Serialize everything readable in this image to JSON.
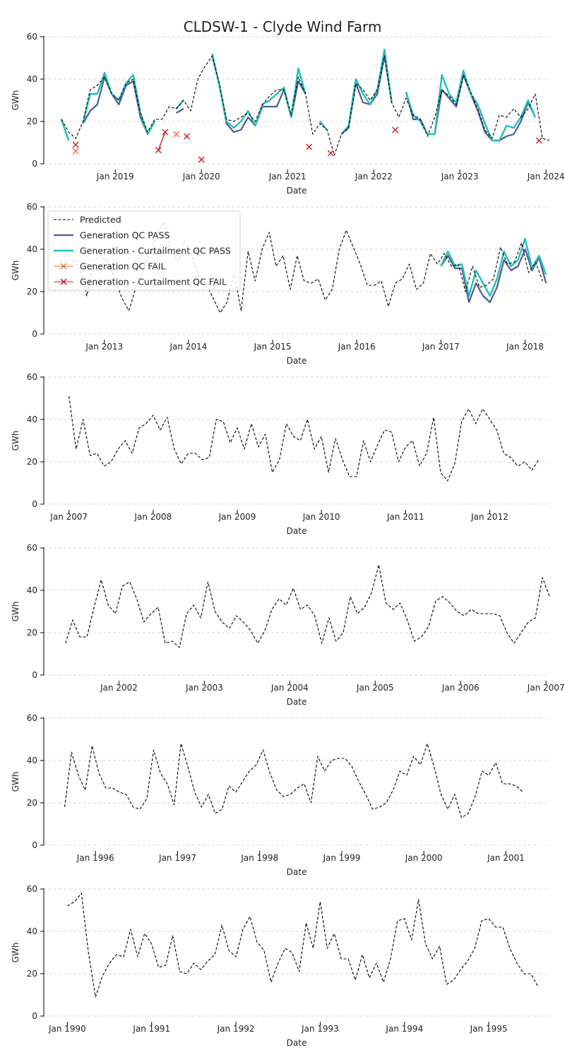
{
  "figure": {
    "title": "CLDSW-1 - Clyde Wind Farm"
  },
  "styles": {
    "predicted_color": "#000000",
    "gen_pass_color": "#4a5a96",
    "gen_curt_pass_color": "#22bfb8",
    "gen_fail_color": "#e8703a",
    "gen_curt_fail_color": "#cc1c1c",
    "grid_color": "#cccccc"
  },
  "legend": {
    "panel": 1,
    "placement": "top-left",
    "entries": [
      {
        "key": "predicted",
        "label": "Predicted"
      },
      {
        "key": "gen_pass",
        "label": "Generation QC PASS"
      },
      {
        "key": "gen_curt_pass",
        "label": "Generation - Curtailment QC PASS"
      },
      {
        "key": "gen_fail",
        "label": "Generation QC FAIL"
      },
      {
        "key": "gen_curt_fail",
        "label": "Generation - Curtailment QC FAIL"
      }
    ]
  },
  "chart_data": [
    {
      "type": "line",
      "xlabel": "Date",
      "ylabel": "GWh",
      "ylim": [
        0,
        60
      ],
      "yticks": [
        0,
        20,
        40,
        60
      ],
      "xlim": [
        2018.17,
        2024.04
      ],
      "xticks": [
        {
          "x": 2019,
          "label": "Jan 2019"
        },
        {
          "x": 2020,
          "label": "Jan 2020"
        },
        {
          "x": 2021,
          "label": "Jan 2021"
        },
        {
          "x": 2022,
          "label": "Jan 2022"
        },
        {
          "x": 2023,
          "label": "Jan 2023"
        },
        {
          "x": 2024,
          "label": "Jan 2024"
        }
      ],
      "grid": "y",
      "predicted": {
        "x0": 2018.375,
        "y": [
          21,
          15,
          12,
          20,
          35,
          37,
          41,
          33,
          30,
          38,
          40,
          24,
          15,
          21,
          21,
          27,
          26,
          30,
          25,
          40,
          46,
          51,
          38,
          21,
          20,
          22,
          24,
          20,
          28,
          32,
          35,
          35,
          23,
          41,
          33,
          14,
          19,
          16,
          4,
          14,
          17,
          38,
          35,
          30,
          35,
          51,
          29,
          22,
          31,
          23,
          21,
          13,
          22,
          35,
          32,
          28,
          42,
          34,
          26,
          16,
          12,
          23,
          22,
          26,
          22,
          26,
          33,
          12,
          11
        ]
      },
      "gen_pass": {
        "x0": 2018.375,
        "y": [
          21,
          11,
          null,
          19,
          25,
          28,
          41,
          33,
          28,
          37,
          39,
          22,
          14,
          20,
          null,
          null,
          24,
          26,
          null,
          null,
          null,
          51,
          37,
          19,
          15,
          16,
          22,
          18,
          27,
          27,
          27,
          35,
          22,
          39,
          33,
          null,
          20,
          16,
          null,
          14,
          17,
          38,
          29,
          28,
          33,
          51,
          29,
          null,
          34,
          21,
          21,
          14,
          14,
          35,
          31,
          27,
          42,
          33,
          25,
          15,
          11,
          11,
          13,
          14,
          20,
          29,
          22,
          null,
          null
        ]
      },
      "gen_curt_pass": {
        "x0": 2018.375,
        "y": [
          21,
          11,
          null,
          19,
          33,
          33,
          43,
          33,
          30,
          38,
          42,
          24,
          14,
          20,
          null,
          null,
          26,
          30,
          null,
          null,
          null,
          52,
          37,
          20,
          17,
          20,
          25,
          18,
          28,
          30,
          33,
          36,
          22,
          45,
          33,
          null,
          20,
          16,
          null,
          14,
          18,
          40,
          33,
          28,
          35,
          54,
          29,
          null,
          34,
          23,
          20,
          14,
          14,
          42,
          33,
          29,
          44,
          33,
          28,
          19,
          11,
          11,
          18,
          17,
          22,
          30,
          22,
          null,
          null
        ]
      },
      "gen_fail_points": [
        {
          "x": 2018.54,
          "y": 6
        },
        {
          "x": 2019.71,
          "y": 14
        }
      ],
      "gen_curt_fail_points": [
        {
          "x": 2018.54,
          "y": 9
        },
        {
          "x": 2019.5,
          "y": 6.5
        },
        {
          "x": 2019.58,
          "y": 15
        },
        {
          "x": 2019.83,
          "y": 13
        },
        {
          "x": 2020.0,
          "y": 2
        },
        {
          "x": 2021.25,
          "y": 8
        },
        {
          "x": 2021.5,
          "y": 5
        },
        {
          "x": 2022.25,
          "y": 16
        },
        {
          "x": 2023.92,
          "y": 11
        }
      ],
      "gen_curt_fail_line": [
        {
          "x": 2019.5,
          "y": 6.5
        },
        {
          "x": 2019.58,
          "y": 15
        }
      ]
    },
    {
      "type": "line",
      "xlabel": "Date",
      "ylabel": "GWh",
      "ylim": [
        0,
        60
      ],
      "yticks": [
        0,
        20,
        40,
        60
      ],
      "xlim": [
        2012.28,
        2018.29
      ],
      "xticks": [
        {
          "x": 2013,
          "label": "Jan 2013"
        },
        {
          "x": 2014,
          "label": "Jan 2014"
        },
        {
          "x": 2015,
          "label": "Jan 2015"
        },
        {
          "x": 2016,
          "label": "Jan 2016"
        },
        {
          "x": 2017,
          "label": "Jan 2017"
        },
        {
          "x": 2018,
          "label": "Jan 2018"
        }
      ],
      "grid": "y",
      "predicted": {
        "x0": 2012.625,
        "y": [
          35,
          31,
          18,
          35,
          37,
          34,
          26,
          17,
          11,
          22,
          30,
          38,
          47,
          53,
          40,
          34,
          44,
          37,
          27,
          24,
          17,
          10,
          15,
          29,
          11,
          39,
          25,
          40,
          48,
          32,
          37,
          21,
          37,
          25,
          24,
          26,
          16,
          21,
          40,
          49,
          41,
          33,
          23,
          23,
          25,
          13,
          24,
          26,
          33,
          21,
          24,
          38,
          33,
          38,
          32,
          33,
          20,
          32,
          22,
          23,
          26,
          41,
          33,
          34,
          43,
          29,
          34,
          25
        ]
      },
      "gen_pass": {
        "x0": 2017.0,
        "y": [
          32,
          37,
          31,
          31,
          15,
          24,
          18,
          15,
          22,
          35,
          30,
          32,
          40,
          30,
          36,
          24
        ]
      },
      "gen_curt_pass": {
        "x0": 2017.0,
        "y": [
          32,
          39,
          32,
          33,
          18,
          30,
          24,
          18,
          26,
          39,
          32,
          35,
          45,
          31,
          37,
          28
        ]
      },
      "gen_fail_points": [],
      "gen_curt_fail_points": [],
      "gen_curt_fail_line": []
    },
    {
      "type": "line",
      "xlabel": "Date",
      "ylabel": "GWh",
      "ylim": [
        0,
        60
      ],
      "yticks": [
        0,
        20,
        40,
        60
      ],
      "xlim": [
        2006.7,
        2012.71
      ],
      "xticks": [
        {
          "x": 2007,
          "label": "Jan 2007"
        },
        {
          "x": 2008,
          "label": "Jan 2008"
        },
        {
          "x": 2009,
          "label": "Jan 2009"
        },
        {
          "x": 2010,
          "label": "Jan 2010"
        },
        {
          "x": 2011,
          "label": "Jan 2011"
        },
        {
          "x": 2012,
          "label": "Jan 2012"
        }
      ],
      "grid": "y",
      "predicted": {
        "x0": 2007.0,
        "y": [
          51,
          26,
          40,
          23,
          24,
          18,
          20,
          26,
          30,
          24,
          36,
          38,
          42,
          35,
          41,
          26,
          19,
          24,
          24,
          21,
          22,
          40,
          39,
          29,
          36,
          26,
          38,
          27,
          33,
          15,
          21,
          38,
          32,
          30,
          40,
          26,
          32,
          15,
          31,
          21,
          13,
          13,
          30,
          20,
          28,
          35,
          34,
          20,
          27,
          30,
          18,
          24,
          41,
          15,
          11,
          19,
          39,
          45,
          38,
          45,
          40,
          35,
          24,
          22,
          18,
          20,
          16,
          21
        ]
      },
      "gen_pass": null,
      "gen_curt_pass": null,
      "gen_fail_points": [],
      "gen_curt_fail_points": [],
      "gen_curt_fail_line": []
    },
    {
      "type": "line",
      "xlabel": "Date",
      "ylabel": "GWh",
      "ylim": [
        0,
        60
      ],
      "yticks": [
        0,
        20,
        40,
        60
      ],
      "xlim": [
        2001.12,
        2007.04
      ],
      "xticks": [
        {
          "x": 2002,
          "label": "Jan 2002"
        },
        {
          "x": 2003,
          "label": "Jan 2003"
        },
        {
          "x": 2004,
          "label": "Jan 2004"
        },
        {
          "x": 2005,
          "label": "Jan 2005"
        },
        {
          "x": 2006,
          "label": "Jan 2006"
        },
        {
          "x": 2007,
          "label": "Jan 2007"
        }
      ],
      "grid": "y",
      "predicted": {
        "x0": 2001.375,
        "y": [
          15,
          26,
          18,
          18,
          32,
          45,
          33,
          29,
          42,
          44,
          36,
          25,
          29,
          32,
          15,
          16,
          13,
          29,
          33,
          27,
          44,
          30,
          25,
          22,
          28,
          25,
          21,
          15,
          21,
          31,
          36,
          33,
          41,
          31,
          33,
          28,
          15,
          27,
          16,
          20,
          37,
          29,
          32,
          39,
          52,
          34,
          31,
          34,
          26,
          16,
          18,
          23,
          35,
          37,
          34,
          30,
          28,
          31,
          29,
          29,
          29,
          28,
          20,
          15,
          20,
          25,
          27,
          46,
          37
        ]
      },
      "gen_pass": null,
      "gen_curt_pass": null,
      "gen_fail_points": [],
      "gen_curt_fail_points": [],
      "gen_curt_fail_line": []
    },
    {
      "type": "line",
      "xlabel": "Date",
      "ylabel": "GWh",
      "ylim": [
        0,
        60
      ],
      "yticks": [
        0,
        20,
        40,
        60
      ],
      "xlim": [
        1995.37,
        2001.53
      ],
      "xticks": [
        {
          "x": 1996,
          "label": "Jan 1996"
        },
        {
          "x": 1997,
          "label": "Jan 1997"
        },
        {
          "x": 1998,
          "label": "Jan 1998"
        },
        {
          "x": 1999,
          "label": "Jan 1999"
        },
        {
          "x": 2000,
          "label": "Jan 2000"
        },
        {
          "x": 2001,
          "label": "Jan 2001"
        }
      ],
      "grid": "y",
      "predicted": {
        "x0": 1995.625,
        "y": [
          18,
          44,
          33,
          26,
          47,
          34,
          27,
          27,
          25,
          24,
          18,
          17,
          22,
          45,
          34,
          29,
          19,
          48,
          37,
          25,
          18,
          24,
          15,
          17,
          28,
          25,
          30,
          35,
          38,
          45,
          34,
          26,
          23,
          24,
          27,
          29,
          20,
          42,
          35,
          40,
          41,
          41,
          37,
          30,
          24,
          17,
          18,
          20,
          26,
          35,
          33,
          42,
          38,
          48,
          37,
          24,
          17,
          24,
          13,
          15,
          23,
          35,
          33,
          39,
          29,
          29,
          28,
          25
        ]
      },
      "gen_pass": null,
      "gen_curt_pass": null,
      "gen_fail_points": [],
      "gen_curt_fail_points": [],
      "gen_curt_fail_line": []
    },
    {
      "type": "line",
      "xlabel": "Date",
      "ylabel": "GWh",
      "ylim": [
        0,
        60
      ],
      "yticks": [
        0,
        20,
        40,
        60
      ],
      "xlim": [
        1989.72,
        1995.72
      ],
      "xticks": [
        {
          "x": 1990,
          "label": "Jan 1990"
        },
        {
          "x": 1991,
          "label": "Jan 1991"
        },
        {
          "x": 1992,
          "label": "Jan 1992"
        },
        {
          "x": 1993,
          "label": "Jan 1993"
        },
        {
          "x": 1994,
          "label": "Jan 1994"
        },
        {
          "x": 1995,
          "label": "Jan 1995"
        }
      ],
      "grid": "y",
      "predicted": {
        "x0": 1990.0,
        "y": [
          52,
          54,
          58,
          30,
          9,
          19,
          25,
          29,
          28,
          41,
          28,
          39,
          34,
          23,
          24,
          38,
          21,
          20,
          25,
          22,
          26,
          29,
          43,
          31,
          28,
          41,
          47,
          35,
          31,
          16,
          25,
          32,
          30,
          21,
          44,
          32,
          54,
          32,
          39,
          27,
          27,
          17,
          29,
          18,
          25,
          16,
          27,
          45,
          46,
          36,
          55,
          34,
          27,
          33,
          15,
          17,
          22,
          26,
          32,
          45,
          46,
          42,
          42,
          32,
          25,
          20,
          20,
          14
        ]
      },
      "gen_pass": null,
      "gen_curt_pass": null,
      "gen_fail_points": [],
      "gen_curt_fail_points": [],
      "gen_curt_fail_line": []
    }
  ]
}
